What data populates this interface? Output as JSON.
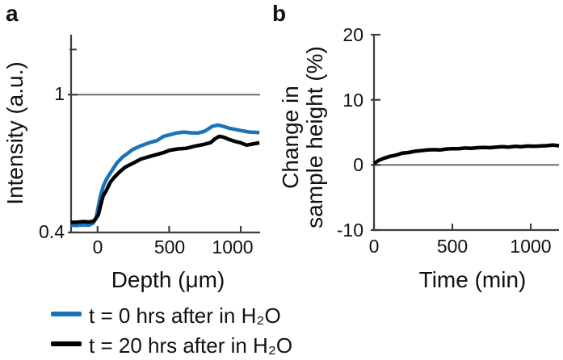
{
  "figure": {
    "panel_a_label": "a",
    "panel_b_label": "b"
  },
  "legend": {
    "entries": [
      {
        "label": "t = 0 hrs after in H₂O",
        "color": "#1b74b8"
      },
      {
        "label": "t = 20 hrs after in H₂O",
        "color": "#000000"
      }
    ]
  },
  "chart_data": [
    {
      "id": "a",
      "type": "line",
      "title": "",
      "xlabel": "Depth (μm)",
      "ylabel": "Intensity (a.u.)",
      "xlim": [
        -185,
        1135
      ],
      "ylim": [
        0.4,
        1.49
      ],
      "yscale": "log",
      "grid": false,
      "xticks": [
        0,
        500,
        1000
      ],
      "xtick_labels": [
        "0",
        "500",
        "1000"
      ],
      "yticks": [
        1,
        0.4
      ],
      "ytick_labels": [
        "1",
        "0.4"
      ],
      "yticks_minor": [
        1.35
      ],
      "reference_line_y": 1,
      "legend_position": "below",
      "series": [
        {
          "name": "t = 0 hrs after in H₂O",
          "color": "#1b74b8",
          "x": [
            -185,
            -150,
            -100,
            -60,
            -30,
            -10,
            5,
            20,
            40,
            62,
            79,
            107,
            135,
            174,
            208,
            247,
            303,
            360,
            416,
            461,
            500,
            550,
            600,
            650,
            700,
            750,
            800,
            840,
            880,
            920,
            1000,
            1060,
            1130
          ],
          "y": [
            0.42,
            0.419,
            0.421,
            0.42,
            0.426,
            0.44,
            0.475,
            0.51,
            0.545,
            0.57,
            0.585,
            0.61,
            0.635,
            0.66,
            0.676,
            0.695,
            0.712,
            0.726,
            0.737,
            0.758,
            0.765,
            0.775,
            0.78,
            0.776,
            0.775,
            0.785,
            0.81,
            0.817,
            0.81,
            0.8,
            0.788,
            0.78,
            0.777
          ]
        },
        {
          "name": "t = 20 hrs after in H₂O",
          "color": "#000000",
          "x": [
            -185,
            -150,
            -100,
            -60,
            -30,
            -10,
            5,
            22,
            39,
            62,
            90,
            118,
            157,
            191,
            247,
            303,
            360,
            416,
            461,
            500,
            560,
            620,
            680,
            740,
            790,
            820,
            850,
            880,
            920,
            960,
            1000,
            1040,
            1080,
            1130
          ],
          "y": [
            0.428,
            0.428,
            0.43,
            0.429,
            0.431,
            0.44,
            0.45,
            0.48,
            0.51,
            0.53,
            0.56,
            0.578,
            0.6,
            0.617,
            0.634,
            0.652,
            0.662,
            0.672,
            0.68,
            0.69,
            0.697,
            0.7,
            0.71,
            0.718,
            0.727,
            0.746,
            0.758,
            0.754,
            0.742,
            0.733,
            0.726,
            0.715,
            0.72,
            0.726
          ]
        }
      ]
    },
    {
      "id": "b",
      "type": "line",
      "title": "",
      "xlabel": "Time (min)",
      "ylabel": "Change in sample height (%)",
      "ylabel_lines": [
        "Change in",
        "sample height (%)"
      ],
      "xlim": [
        0,
        1180
      ],
      "ylim": [
        -10,
        20
      ],
      "yscale": "linear",
      "grid": false,
      "xticks": [
        0,
        500,
        1000
      ],
      "xtick_labels": [
        "0",
        "500",
        "1000"
      ],
      "yticks": [
        20,
        10,
        0,
        -10
      ],
      "ytick_labels": [
        "20",
        "10",
        "0",
        "-10"
      ],
      "reference_line_y": 0,
      "series": [
        {
          "name": "change in sample height",
          "color": "#000000",
          "x": [
            0,
            30,
            60,
            100,
            140,
            180,
            220,
            260,
            300,
            340,
            380,
            420,
            460,
            500,
            540,
            580,
            620,
            660,
            700,
            740,
            780,
            820,
            860,
            900,
            940,
            980,
            1020,
            1060,
            1100,
            1140,
            1180
          ],
          "y": [
            0.2,
            0.7,
            1.0,
            1.3,
            1.5,
            1.8,
            1.9,
            2.1,
            2.2,
            2.3,
            2.35,
            2.3,
            2.45,
            2.5,
            2.5,
            2.6,
            2.55,
            2.65,
            2.7,
            2.65,
            2.75,
            2.8,
            2.75,
            2.85,
            2.8,
            2.9,
            2.85,
            2.9,
            2.95,
            3.05,
            2.95
          ]
        }
      ]
    }
  ]
}
